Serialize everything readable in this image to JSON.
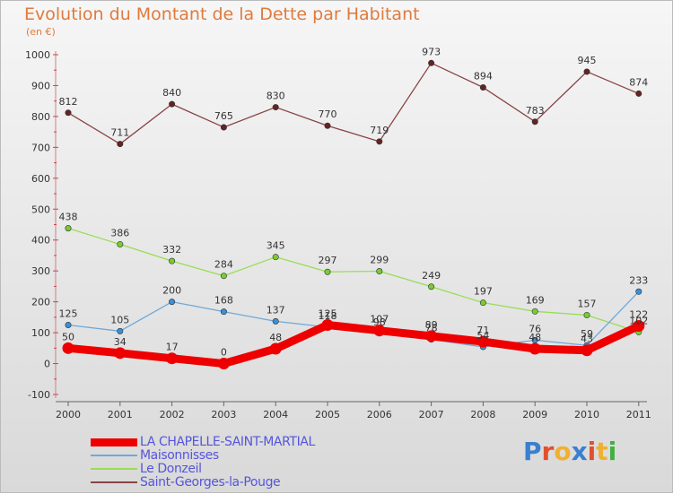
{
  "header": {
    "title": "Evolution du Montant de la Dette par Habitant",
    "subtitle": "(en €)"
  },
  "logo": {
    "text": "Proxiti",
    "letter_colors": [
      "#3a7fd0",
      "#e05030",
      "#f0b030",
      "#3a7fd0",
      "#e05030",
      "#f0b030",
      "#40b040"
    ]
  },
  "chart_data": {
    "type": "line",
    "title": "Evolution du Montant de la Dette par Habitant",
    "ylabel": "(en €)",
    "xlabel": "",
    "x": [
      "2000",
      "2001",
      "2002",
      "2003",
      "2004",
      "2005",
      "2006",
      "2007",
      "2008",
      "2009",
      "2010",
      "2011"
    ],
    "ylim": [
      -100,
      1000
    ],
    "yticks": [
      "-100",
      "0",
      "100",
      "200",
      "300",
      "400",
      "500",
      "600",
      "700",
      "800",
      "900",
      "1000"
    ],
    "grid": false,
    "legend_position": "bottom-left",
    "series": [
      {
        "name": "LA CHAPELLE-SAINT-MARTIAL",
        "values": [
          50,
          34,
          17,
          0,
          48,
          125,
          107,
          89,
          71,
          48,
          43,
          122
        ],
        "color": "#ee0000",
        "marker_color": "#ee0000",
        "thick": true
      },
      {
        "name": "Maisonnisses",
        "values": [
          125,
          105,
          200,
          168,
          137,
          118,
          98,
          78,
          54,
          76,
          59,
          233
        ],
        "color": "#6fa8d8",
        "marker_color": "#3a8fd8",
        "thick": false
      },
      {
        "name": "Le Donzeil",
        "values": [
          438,
          386,
          332,
          284,
          345,
          297,
          299,
          249,
          197,
          169,
          157,
          102
        ],
        "color": "#99dd55",
        "marker_color": "#77cc33",
        "thick": false
      },
      {
        "name": "Saint-Georges-la-Pouge",
        "values": [
          812,
          711,
          840,
          765,
          830,
          770,
          719,
          973,
          894,
          783,
          945,
          874
        ],
        "color": "#884444",
        "marker_color": "#662222",
        "thick": false
      }
    ]
  }
}
